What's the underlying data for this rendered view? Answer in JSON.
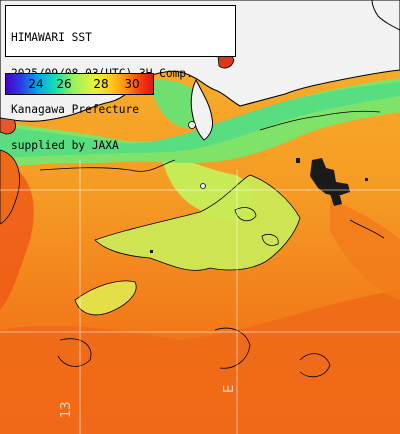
{
  "info": {
    "lines": [
      "HIMAWARI SST",
      "2025/09/08 03(UTC) 3H Comp.",
      "Kanagawa Prefecture",
      "supplied by JAXA"
    ]
  },
  "legend": {
    "ticks": [
      "24",
      "26",
      "28",
      "30"
    ],
    "colors": [
      "#4b00c8",
      "#0aa6e8",
      "#9af25a",
      "#ffcc22",
      "#f43a0a",
      "#d81818"
    ]
  },
  "grid_labels": {
    "longitude_1": "13",
    "longitude_2": "E"
  },
  "colors": {
    "land": "#f2f2f2",
    "coastline": "#000000",
    "warm_sea": "#f26a17",
    "mid_sea": "#f7b22c",
    "cool_sea": "#a8e653",
    "coolest_sea": "#5ee27a",
    "missing": "#1a1a1a"
  }
}
